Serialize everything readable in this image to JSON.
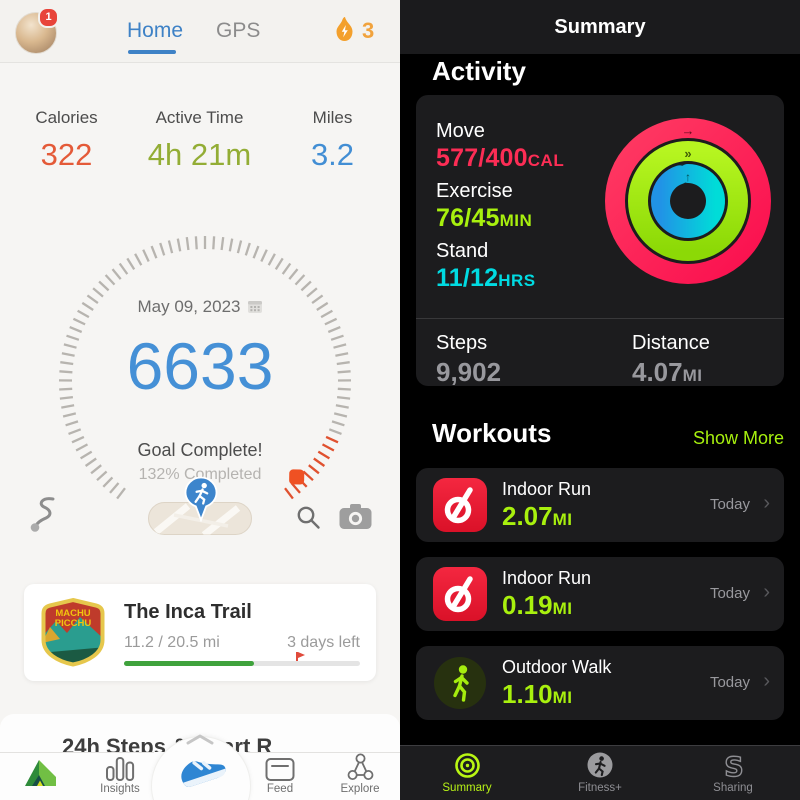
{
  "left_app": {
    "header": {
      "notification_count": "1",
      "tabs": [
        {
          "label": "Home",
          "active": true
        },
        {
          "label": "GPS",
          "active": false
        }
      ],
      "streak_count": "3",
      "icons": [
        "avatar",
        "notification-badge",
        "flame-icon"
      ]
    },
    "stats": [
      {
        "label": "Calories",
        "value": "322",
        "color": "#e45a38"
      },
      {
        "label": "Active Time",
        "value": "4h 21m",
        "color": "#93ad35"
      },
      {
        "label": "Miles",
        "value": "3.2",
        "color": "#428ed4"
      }
    ],
    "gauge": {
      "date": "May 09, 2023",
      "steps_value": "6633",
      "goal_text": "Goal Complete!",
      "completion_text": "132% Completed",
      "pointer_color": "#ef5123"
    },
    "action_row": {
      "icons": [
        "shoelace-icon",
        "map-pill",
        "runner-pin-icon",
        "search-icon",
        "camera-icon"
      ]
    },
    "challenge": {
      "badge_line1": "MACHU",
      "badge_line2": "PICCHU",
      "title": "The Inca Trail",
      "distance_progress": "11.2 / 20.5 mi",
      "time_remaining": "3 days left",
      "progress_percent": 55,
      "flag_percent": 73,
      "progress_color": "#3fa23c"
    },
    "section_peek": "24h Steps & Heart R",
    "tabbar": {
      "items": [
        {
          "label": "Insights"
        },
        {
          "label": "Feed"
        },
        {
          "label": "Explore"
        }
      ],
      "icons": [
        "pacer-logo",
        "insights-bars-icon",
        "shoe-icon",
        "feed-card-icon",
        "explore-network-icon"
      ]
    }
  },
  "right_app": {
    "nav_title": "Summary",
    "activity": {
      "heading": "Activity",
      "metrics": [
        {
          "label": "Move",
          "value": "577/400",
          "unit": "CAL",
          "color": "#fc2d55"
        },
        {
          "label": "Exercise",
          "value": "76/45",
          "unit": "MIN",
          "color": "#a8f00e"
        },
        {
          "label": "Stand",
          "value": "11/12",
          "unit": "HRS",
          "color": "#00dbe2"
        }
      ],
      "rings": {
        "move_pct": 144,
        "exercise_pct": 169,
        "stand_pct": 92
      },
      "steps": {
        "label": "Steps",
        "value": "9,902"
      },
      "distance": {
        "label": "Distance",
        "value": "4.07",
        "unit": "MI"
      }
    },
    "workouts": {
      "heading": "Workouts",
      "show_more_label": "Show More",
      "items": [
        {
          "icon": "peloton-icon",
          "name": "Indoor Run",
          "value": "2.07",
          "unit": "MI",
          "date": "Today"
        },
        {
          "icon": "peloton-icon",
          "name": "Indoor Run",
          "value": "0.19",
          "unit": "MI",
          "date": "Today"
        },
        {
          "icon": "outdoor-walk-icon",
          "name": "Outdoor Walk",
          "value": "1.10",
          "unit": "MI",
          "date": "Today"
        }
      ],
      "chevron": "›"
    },
    "tabbar": {
      "items": [
        {
          "label": "Summary",
          "active": true
        },
        {
          "label": "Fitness+",
          "active": false
        },
        {
          "label": "Sharing",
          "active": false
        }
      ]
    }
  },
  "colors": {
    "left_accent_blue": "#3e82c6",
    "steps_number_blue": "#4590d6",
    "streak_orange": "#f1a33d",
    "background_light": "#f6f5f3",
    "card_light": "#ffffff",
    "move_pink": "#fc2d55",
    "exercise_lime": "#a8f00e",
    "stand_cyan": "#00dbe2",
    "show_more_green": "#a7f00e",
    "card_dark": "#1c1c1e",
    "background_dark": "#000000"
  }
}
